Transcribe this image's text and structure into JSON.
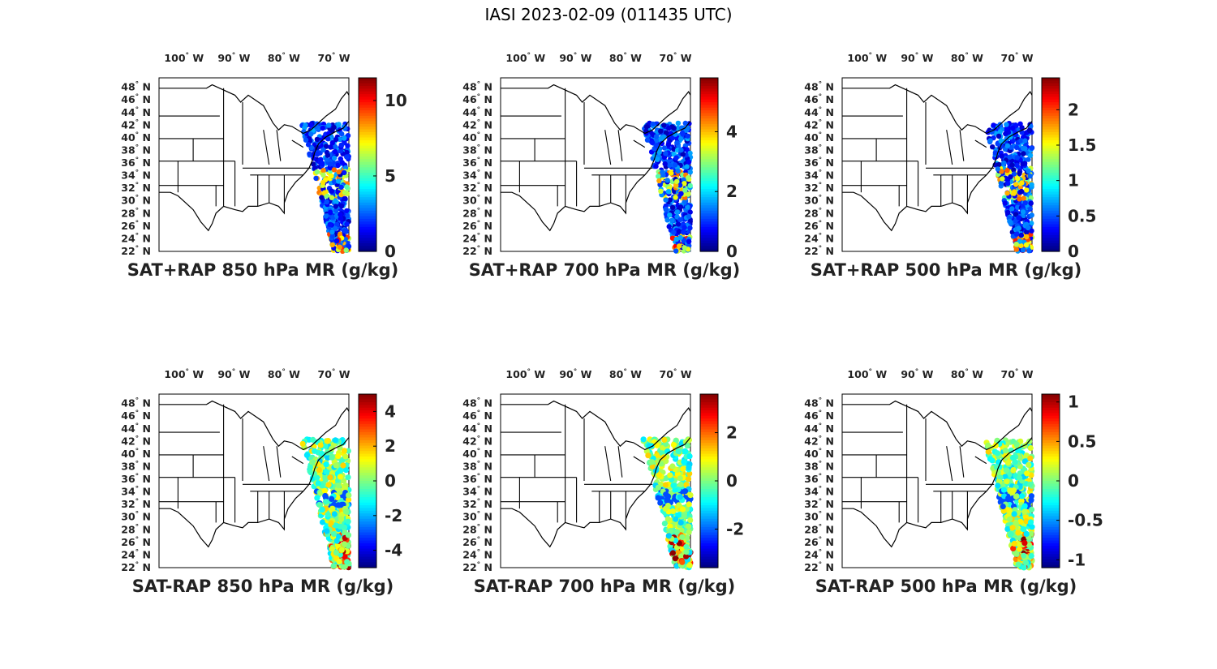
{
  "title": "IASI 2023-02-09 (011435 UTC)",
  "lon_labels": [
    "100",
    "90",
    "80",
    "70"
  ],
  "lon_suffix": "W",
  "lat_labels": [
    "48",
    "46",
    "44",
    "42",
    "40",
    "38",
    "36",
    "34",
    "32",
    "30",
    "28",
    "26",
    "24",
    "22"
  ],
  "lat_suffix": "N",
  "degree_symbol": "°",
  "colormap": "jet",
  "panels": [
    {
      "title": "SAT+RAP 850 hPa MR (g/kg)",
      "clim": [
        0,
        11.5
      ],
      "cb_ticks": [
        0,
        5,
        10
      ],
      "cb_tick_labels": [
        "0",
        "5",
        "10"
      ],
      "field": "sum850"
    },
    {
      "title": "SAT+RAP 700 hPa MR (g/kg)",
      "clim": [
        0,
        5.8
      ],
      "cb_ticks": [
        0,
        2,
        4
      ],
      "cb_tick_labels": [
        "0",
        "2",
        "4"
      ],
      "field": "sum700"
    },
    {
      "title": "SAT+RAP 500 hPa MR (g/kg)",
      "clim": [
        0,
        2.45
      ],
      "cb_ticks": [
        0,
        0.5,
        1,
        1.5,
        2
      ],
      "cb_tick_labels": [
        "0",
        "0.5",
        "1",
        "1.5",
        "2"
      ],
      "field": "sum500"
    },
    {
      "title": "SAT-RAP 850 hPa MR (g/kg)",
      "clim": [
        -5,
        5
      ],
      "cb_ticks": [
        -4,
        -2,
        0,
        2,
        4
      ],
      "cb_tick_labels": [
        "-4",
        "-2",
        "0",
        "2",
        "4"
      ],
      "field": "diff850"
    },
    {
      "title": "SAT-RAP 700 hPa MR (g/kg)",
      "clim": [
        -3.6,
        3.6
      ],
      "cb_ticks": [
        -2,
        0,
        2
      ],
      "cb_tick_labels": [
        "-2",
        "0",
        "2"
      ],
      "field": "diff700"
    },
    {
      "title": "SAT-RAP 500 hPa MR (g/kg)",
      "clim": [
        -1.1,
        1.1
      ],
      "cb_ticks": [
        -1,
        -0.5,
        0,
        0.5,
        1
      ],
      "cb_tick_labels": [
        "-1",
        "-0.5",
        "0",
        "0.5",
        "1"
      ],
      "field": "diff500"
    }
  ]
}
